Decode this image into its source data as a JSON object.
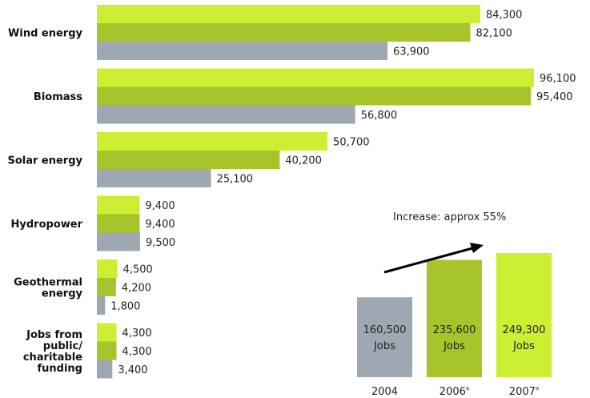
{
  "chart_data": [
    {
      "type": "bar",
      "orientation": "horizontal",
      "categories": [
        [
          "Wind energy"
        ],
        [
          "Biomass"
        ],
        [
          "Solar energy"
        ],
        [
          "Hydropower"
        ],
        [
          "Geothermal",
          "energy"
        ],
        [
          "Jobs from",
          "public/",
          "charitable",
          "funding"
        ]
      ],
      "series": [
        {
          "year": "2007",
          "color": "#ccee33",
          "values": [
            84300,
            96100,
            50700,
            9400,
            4500,
            4300
          ],
          "labels": [
            "84,300",
            "96,100",
            "50,700",
            "9,400",
            "4,500",
            "4,300"
          ]
        },
        {
          "year": "2006",
          "color": "#a7c52b",
          "values": [
            82100,
            95400,
            40200,
            9400,
            4200,
            4300
          ],
          "labels": [
            "82,100",
            "95,400",
            "40,200",
            "9,400",
            "4,200",
            "4,300"
          ]
        },
        {
          "year": "2004",
          "color": "#9ea8b2",
          "values": [
            63900,
            56800,
            25100,
            9500,
            1800,
            3400
          ],
          "labels": [
            "63,900",
            "56,800",
            "25,100",
            "9,500",
            "1,800",
            "3,400"
          ]
        }
      ],
      "xlim": [
        0,
        100000
      ],
      "legend": "none",
      "grid": false
    },
    {
      "type": "bar",
      "orientation": "vertical",
      "categories": [
        {
          "year": "2004",
          "mark": ""
        },
        {
          "year": "2006",
          "mark": "a"
        },
        {
          "year": "2007",
          "mark": "a"
        }
      ],
      "values": [
        160500,
        235600,
        249300
      ],
      "value_labels": [
        "160,500",
        "235,600",
        "249,300"
      ],
      "unit_label": "Jobs",
      "colors": [
        "#9ea8b2",
        "#a7c52b",
        "#ccee33"
      ],
      "annotation": "Increase: approx 55%",
      "ylim": [
        0,
        260000
      ],
      "grid": false
    }
  ]
}
